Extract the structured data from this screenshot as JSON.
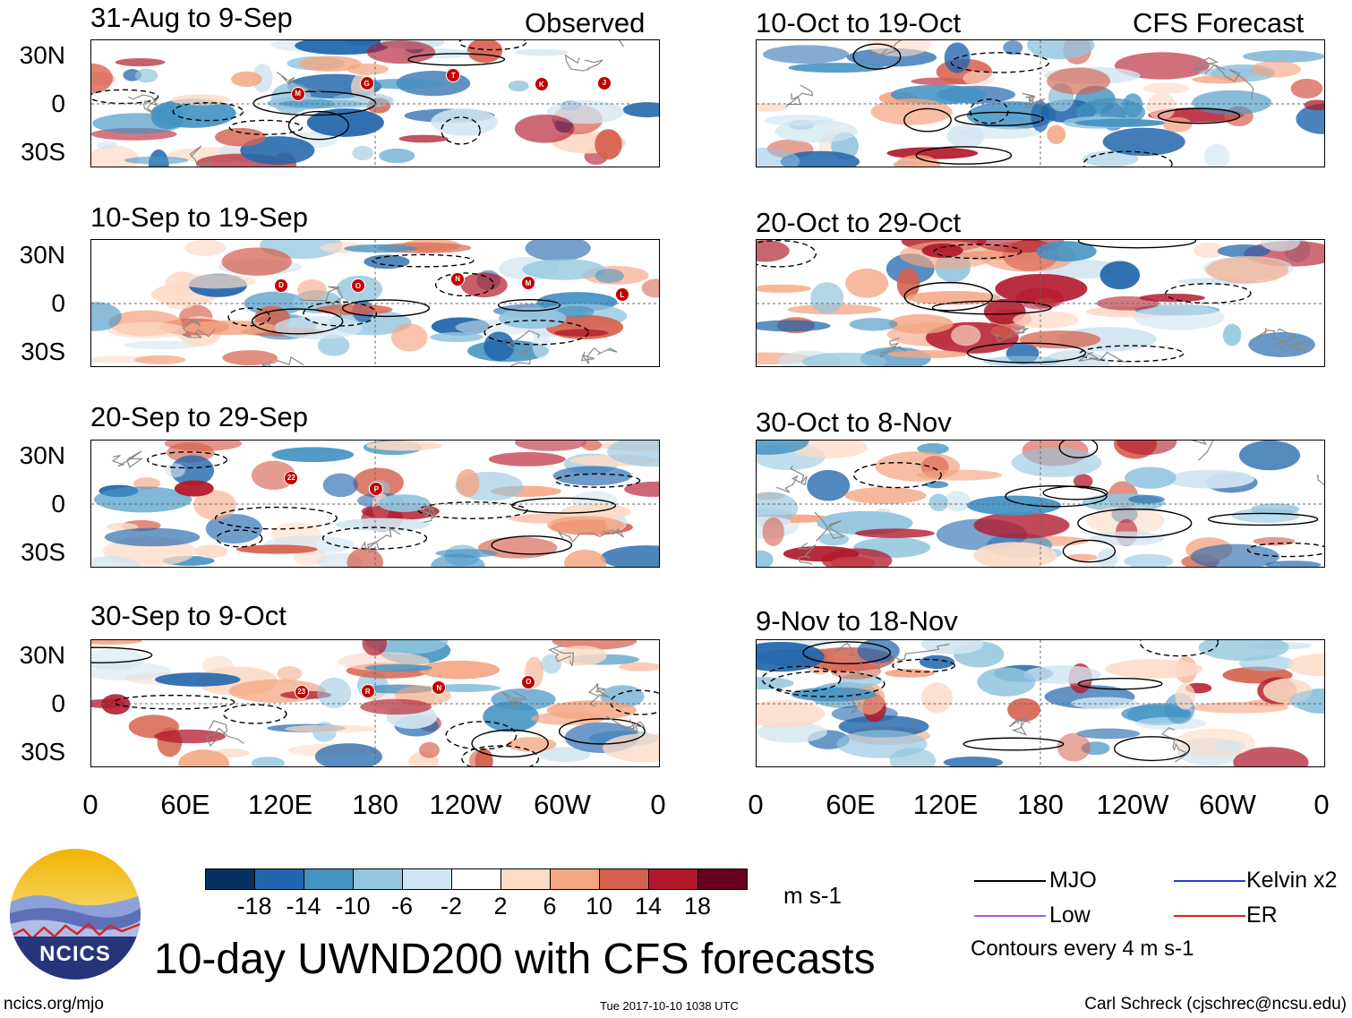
{
  "observed_label": "Observed",
  "forecast_label": "CFS Forecast",
  "observed_panels": [
    {
      "title": "31-Aug to 9-Sep",
      "storms": [
        "M",
        "G",
        "T",
        "K",
        "J"
      ]
    },
    {
      "title": "10-Sep to 19-Sep",
      "storms": [
        "D",
        "O",
        "N",
        "M",
        "L"
      ]
    },
    {
      "title": "20-Sep to 29-Sep",
      "storms": [
        "22",
        "P"
      ]
    },
    {
      "title": "30-Sep to 9-Oct",
      "storms": [
        "23",
        "R",
        "N",
        "O"
      ]
    }
  ],
  "forecast_panels": [
    {
      "title": "10-Oct to 19-Oct"
    },
    {
      "title": "20-Oct to 29-Oct"
    },
    {
      "title": "30-Oct to 8-Nov"
    },
    {
      "title": "9-Nov to 18-Nov"
    }
  ],
  "lat_labels": [
    "30N",
    "0",
    "30S"
  ],
  "lon_labels": [
    "0",
    "60E",
    "120E",
    "180",
    "120W",
    "60W",
    "0"
  ],
  "colorbar": {
    "ticks": [
      "-18",
      "-14",
      "-10",
      "-6",
      "-2",
      "2",
      "6",
      "10",
      "14",
      "18"
    ],
    "colors": [
      "#053061",
      "#2166ac",
      "#4393c3",
      "#92c5de",
      "#d1e5f0",
      "#ffffff",
      "#fddbc7",
      "#f4a582",
      "#d6604d",
      "#b2182b",
      "#67001f"
    ],
    "units": "m s-1"
  },
  "legend": {
    "items": [
      {
        "label": "MJO",
        "color": "#000000"
      },
      {
        "label": "Kelvin x2",
        "color": "#1f3fd6"
      },
      {
        "label": "Low",
        "color": "#a05ce0"
      },
      {
        "label": "ER",
        "color": "#e02020"
      }
    ],
    "contour_note": "Contours every 4 m s-1"
  },
  "main_title": "10-day UWND200 with CFS forecasts",
  "logo_text": "NCICS",
  "footer": {
    "url": "ncics.org/mjo",
    "timestamp": "Tue 2017-10-10 1038 UTC",
    "author": "Carl Schreck (cjschrec@ncsu.edu)"
  }
}
